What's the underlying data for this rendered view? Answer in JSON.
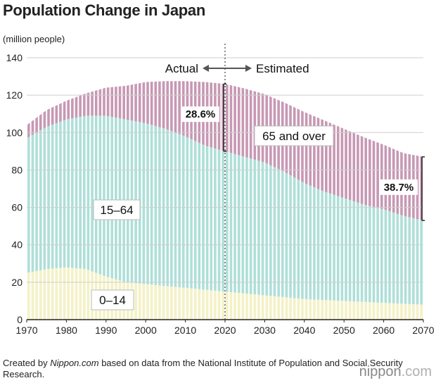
{
  "title": "Population Change in Japan",
  "footer": {
    "prefix": "Created by ",
    "site": "Nippon.com",
    "suffix": " based on data from the National Institute of Population and Social Security Research."
  },
  "logo": {
    "brand": "nippon",
    "tld": ".com"
  },
  "colors": {
    "elderly": "#c798b4",
    "working": "#aedfd8",
    "children": "#f4f1c6",
    "bar_gap": "#ffffff"
  },
  "chart_data": {
    "type": "area",
    "title": "Population Change in Japan",
    "ylabel": "(million people)",
    "xlabel": "",
    "ylim": [
      0,
      140
    ],
    "xlim": [
      1970,
      2070
    ],
    "grid": true,
    "yticks": [
      0,
      20,
      40,
      60,
      80,
      100,
      120,
      140
    ],
    "xticks": [
      1970,
      1980,
      1990,
      2000,
      2010,
      2020,
      2030,
      2040,
      2050,
      2060,
      2070
    ],
    "divider_year": 2020,
    "x": [
      1970,
      1975,
      1980,
      1985,
      1990,
      1995,
      2000,
      2005,
      2010,
      2015,
      2020,
      2025,
      2030,
      2035,
      2040,
      2045,
      2050,
      2055,
      2060,
      2065,
      2070
    ],
    "series": [
      {
        "name": "0–14",
        "values": [
          25,
          27,
          28,
          27,
          23,
          20,
          19,
          18,
          17,
          16,
          15,
          14,
          13,
          12,
          11,
          10.5,
          10,
          9.5,
          9,
          8.5,
          8
        ]
      },
      {
        "name": "15–64",
        "values": [
          72,
          76,
          79,
          82,
          86,
          87,
          86,
          84,
          81,
          77,
          75,
          73,
          71,
          67,
          62,
          58,
          55,
          52,
          50,
          47,
          45
        ]
      },
      {
        "name": "65 and over",
        "values": [
          7,
          9,
          10,
          12,
          15,
          18,
          22,
          25.5,
          29.5,
          34,
          36,
          36.5,
          36.5,
          37,
          38,
          38,
          37,
          36,
          34.5,
          33.5,
          34
        ]
      }
    ],
    "annotations": {
      "actual": "Actual",
      "estimated": "Estimated",
      "share_2020": "28.6%",
      "share_2070": "38.7%"
    }
  }
}
